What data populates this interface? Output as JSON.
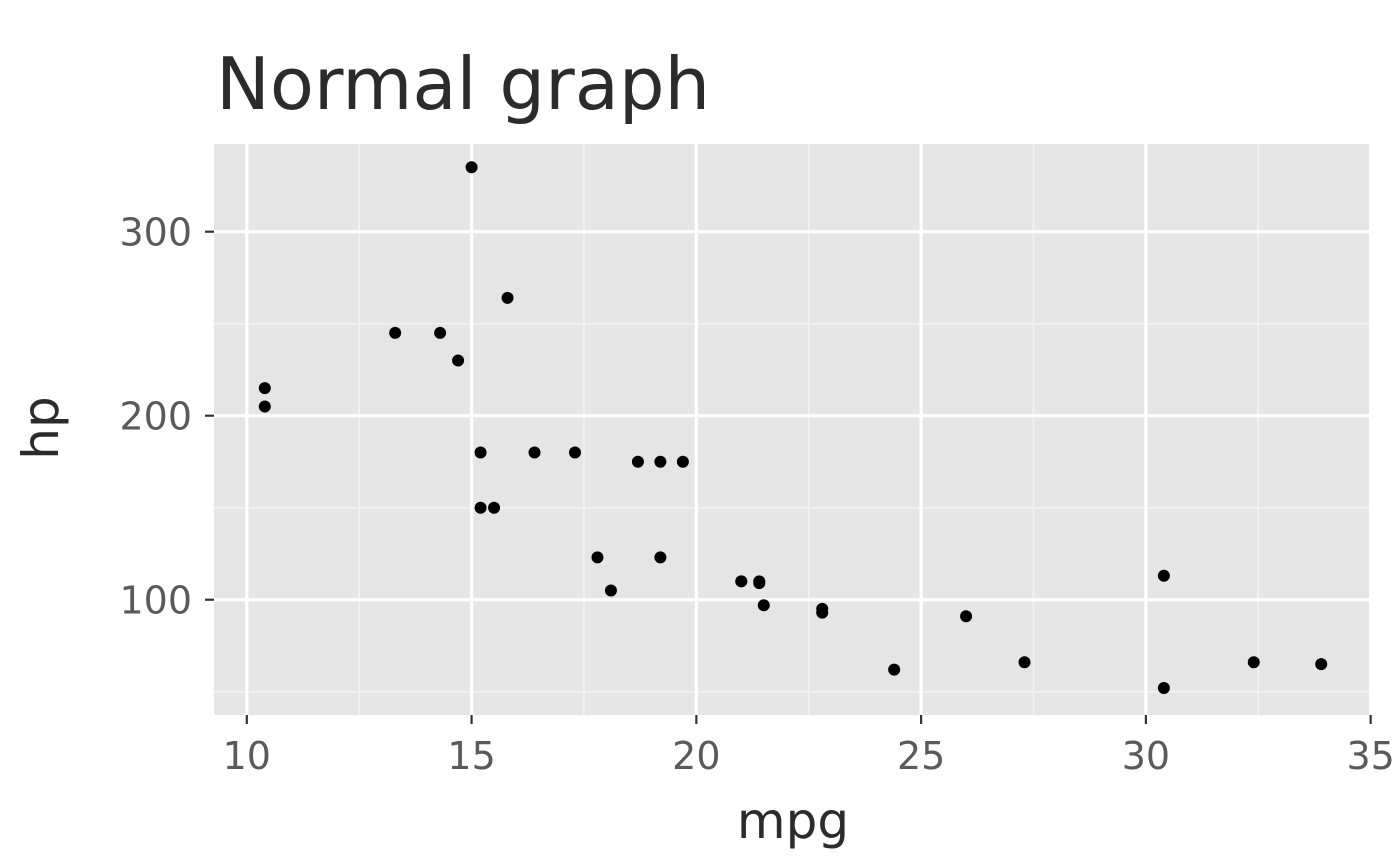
{
  "chart_data": {
    "type": "scatter",
    "title": "Normal graph",
    "xlabel": "mpg",
    "ylabel": "hp",
    "xlim": [
      9.27,
      35.03
    ],
    "ylim": [
      37.35,
      347.65
    ],
    "x_ticks": [
      10,
      15,
      20,
      25,
      30,
      35
    ],
    "x_minor_ticks": [
      12.5,
      17.5,
      22.5,
      27.5,
      32.5
    ],
    "y_ticks": [
      100,
      200,
      300
    ],
    "y_minor_ticks": [
      50,
      150,
      250
    ],
    "grid": true,
    "legend": "none",
    "colors": {
      "panel_background": "#e5e5e5",
      "grid_major": "#ffffff",
      "grid_minor": "#f2f2f2",
      "point": "#000000"
    },
    "points": [
      {
        "x": 21.0,
        "y": 110
      },
      {
        "x": 21.0,
        "y": 110
      },
      {
        "x": 22.8,
        "y": 93
      },
      {
        "x": 21.4,
        "y": 110
      },
      {
        "x": 18.7,
        "y": 175
      },
      {
        "x": 18.1,
        "y": 105
      },
      {
        "x": 14.3,
        "y": 245
      },
      {
        "x": 24.4,
        "y": 62
      },
      {
        "x": 22.8,
        "y": 95
      },
      {
        "x": 19.2,
        "y": 123
      },
      {
        "x": 17.8,
        "y": 123
      },
      {
        "x": 16.4,
        "y": 180
      },
      {
        "x": 17.3,
        "y": 180
      },
      {
        "x": 15.2,
        "y": 180
      },
      {
        "x": 10.4,
        "y": 205
      },
      {
        "x": 10.4,
        "y": 215
      },
      {
        "x": 14.7,
        "y": 230
      },
      {
        "x": 32.4,
        "y": 66
      },
      {
        "x": 30.4,
        "y": 52
      },
      {
        "x": 33.9,
        "y": 65
      },
      {
        "x": 21.5,
        "y": 97
      },
      {
        "x": 15.5,
        "y": 150
      },
      {
        "x": 15.2,
        "y": 150
      },
      {
        "x": 13.3,
        "y": 245
      },
      {
        "x": 19.2,
        "y": 175
      },
      {
        "x": 27.3,
        "y": 66
      },
      {
        "x": 26.0,
        "y": 91
      },
      {
        "x": 30.4,
        "y": 113
      },
      {
        "x": 15.8,
        "y": 264
      },
      {
        "x": 19.7,
        "y": 175
      },
      {
        "x": 15.0,
        "y": 335
      },
      {
        "x": 21.4,
        "y": 109
      }
    ]
  }
}
